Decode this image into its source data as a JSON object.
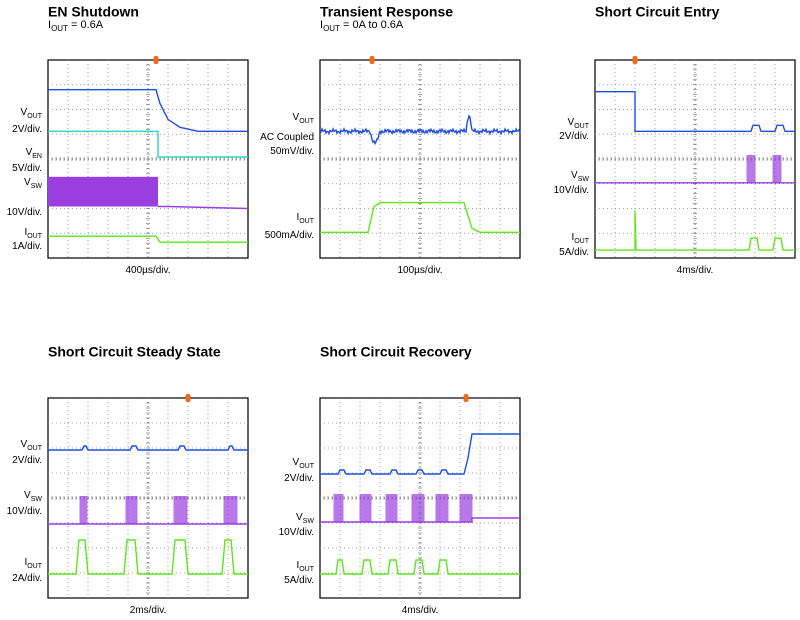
{
  "panels": [
    {
      "title": "EN Shutdown",
      "subtitle": {
        "symbol": "I",
        "sub": "OUT",
        "rest": " = 0.6A"
      },
      "channels": [
        {
          "symbol": "V",
          "sub": "OUT",
          "scale": [
            "2V/div."
          ]
        },
        {
          "symbol": "V",
          "sub": "EN",
          "scale": [
            "5V/div."
          ]
        },
        {
          "symbol": "V",
          "sub": "SW",
          "scale": [
            "10V/div."
          ]
        },
        {
          "symbol": "I",
          "sub": "OUT",
          "scale": [
            "1A/div."
          ]
        }
      ],
      "timebase": "400µs/div."
    },
    {
      "title": "Transient Response",
      "subtitle": {
        "symbol": "I",
        "sub": "OUT",
        "rest": " = 0A to 0.6A"
      },
      "channels": [
        {
          "symbol": "V",
          "sub": "OUT",
          "scale": [
            "AC Coupled",
            "50mV/div."
          ]
        },
        {
          "symbol": "I",
          "sub": "OUT",
          "scale": [
            "500mA/div."
          ]
        }
      ],
      "timebase": "100µs/div."
    },
    {
      "title": "Short Circuit Entry",
      "channels": [
        {
          "symbol": "V",
          "sub": "OUT",
          "scale": [
            "2V/div."
          ]
        },
        {
          "symbol": "V",
          "sub": "SW",
          "scale": [
            "10V/div."
          ]
        },
        {
          "symbol": "I",
          "sub": "OUT",
          "scale": [
            "5A/div."
          ]
        }
      ],
      "timebase": "4ms/div."
    },
    {
      "title": "Short Circuit Steady State",
      "channels": [
        {
          "symbol": "V",
          "sub": "OUT",
          "scale": [
            "2V/div."
          ]
        },
        {
          "symbol": "V",
          "sub": "SW",
          "scale": [
            "10V/div."
          ]
        },
        {
          "symbol": "I",
          "sub": "OUT",
          "scale": [
            "2A/div."
          ]
        }
      ],
      "timebase": "2ms/div."
    },
    {
      "title": "Short Circuit Recovery",
      "channels": [
        {
          "symbol": "V",
          "sub": "OUT",
          "scale": [
            "2V/div."
          ]
        },
        {
          "symbol": "V",
          "sub": "SW",
          "scale": [
            "10V/div."
          ]
        },
        {
          "symbol": "I",
          "sub": "OUT",
          "scale": [
            "5A/div."
          ]
        }
      ],
      "timebase": "4ms/div."
    }
  ]
}
